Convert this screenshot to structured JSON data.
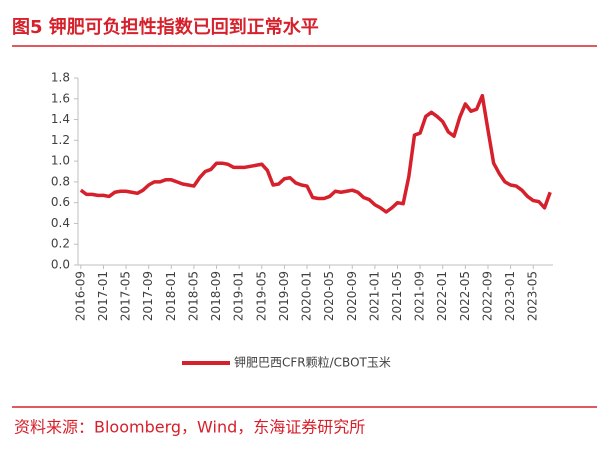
{
  "chart_data": {
    "type": "line",
    "title": "图5  钾肥可负担性指数已回到正常水平",
    "source": "资料来源：Bloomberg，Wind，东海证券研究所",
    "categories": [
      "2016-09",
      null,
      null,
      null,
      "2017-01",
      null,
      null,
      null,
      "2017-05",
      null,
      null,
      null,
      "2017-09",
      null,
      null,
      null,
      "2018-01",
      null,
      null,
      null,
      "2018-05",
      null,
      null,
      null,
      "2018-09",
      null,
      null,
      null,
      "2019-01",
      null,
      null,
      null,
      "2019-05",
      null,
      null,
      null,
      "2019-09",
      null,
      null,
      null,
      "2020-01",
      null,
      null,
      null,
      "2020-05",
      null,
      null,
      null,
      "2020-09",
      null,
      null,
      null,
      "2021-01",
      null,
      null,
      null,
      "2021-05",
      null,
      null,
      null,
      "2021-09",
      null,
      null,
      null,
      "2022-01",
      null,
      null,
      null,
      "2022-05",
      null,
      null,
      null,
      "2022-09",
      null,
      null,
      null,
      "2023-01",
      null,
      null,
      null,
      "2023-05",
      null,
      null,
      null
    ],
    "series": [
      {
        "name": "钾肥巴西CFR颗粒/CBOT玉米",
        "color": "#d6202b",
        "values": [
          0.72,
          0.68,
          0.68,
          0.67,
          0.67,
          0.66,
          0.7,
          0.71,
          0.71,
          0.7,
          0.69,
          0.72,
          0.77,
          0.8,
          0.8,
          0.82,
          0.82,
          0.8,
          0.78,
          0.77,
          0.76,
          0.84,
          0.9,
          0.92,
          0.98,
          0.98,
          0.97,
          0.94,
          0.94,
          0.94,
          0.95,
          0.96,
          0.97,
          0.91,
          0.77,
          0.78,
          0.83,
          0.84,
          0.79,
          0.77,
          0.76,
          0.65,
          0.64,
          0.64,
          0.66,
          0.71,
          0.7,
          0.71,
          0.72,
          0.7,
          0.65,
          0.63,
          0.58,
          0.55,
          0.51,
          0.55,
          0.6,
          0.59,
          0.85,
          1.25,
          1.27,
          1.43,
          1.47,
          1.43,
          1.38,
          1.28,
          1.24,
          1.42,
          1.55,
          1.48,
          1.5,
          1.63,
          1.3,
          0.98,
          0.88,
          0.8,
          0.77,
          0.76,
          0.72,
          0.66,
          0.62,
          0.61,
          0.55,
          0.7
        ]
      }
    ],
    "ylim": [
      0,
      1.8
    ],
    "yticks": [
      {
        "value": 0,
        "label": "0.0"
      },
      0.2,
      0.4,
      0.6,
      0.8,
      {
        "value": 1,
        "label": "1.0"
      },
      1.2,
      1.4,
      1.6,
      1.8
    ],
    "legend": "bottom"
  }
}
